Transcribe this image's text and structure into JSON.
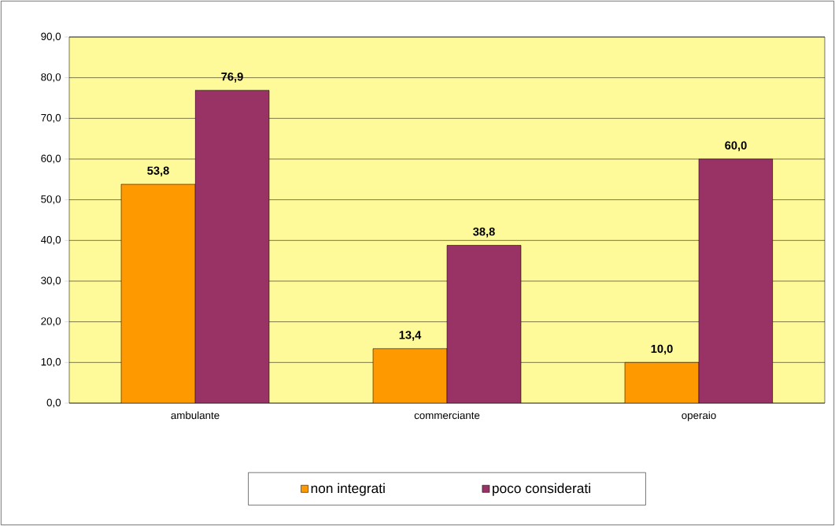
{
  "chart_data": {
    "type": "bar",
    "categories": [
      "ambulante",
      "commerciante",
      "operaio"
    ],
    "series": [
      {
        "name": "non integrati",
        "color": "#ff9900",
        "values": [
          53.8,
          13.4,
          10.0
        ],
        "value_labels": [
          "53,8",
          "13,4",
          "10,0"
        ]
      },
      {
        "name": "poco considerati",
        "color": "#993366",
        "values": [
          76.9,
          38.8,
          60.0
        ],
        "value_labels": [
          "76,9",
          "38,8",
          "60,0"
        ]
      }
    ],
    "ylim": [
      0,
      90
    ],
    "yticks": [
      {
        "value": 0,
        "label": "0,0"
      },
      {
        "value": 10,
        "label": "10,0"
      },
      {
        "value": 20,
        "label": "20,0"
      },
      {
        "value": 30,
        "label": "30,0"
      },
      {
        "value": 40,
        "label": "40,0"
      },
      {
        "value": 50,
        "label": "50,0"
      },
      {
        "value": 60,
        "label": "60,0"
      },
      {
        "value": 70,
        "label": "70,0"
      },
      {
        "value": 80,
        "label": "80,0"
      },
      {
        "value": 90,
        "label": "90,0"
      }
    ],
    "grid": "y",
    "legend": "bottom"
  }
}
